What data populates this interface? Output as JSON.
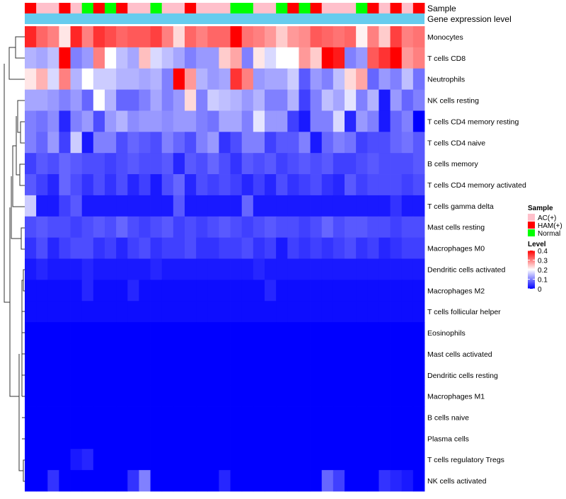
{
  "chart_data": {
    "type": "heatmap",
    "annotation_tracks": [
      {
        "label": "Sample",
        "values": [
          "HAM(+)",
          "AC(+)",
          "AC(+)",
          "HAM(+)",
          "AC(+)",
          "Normal",
          "HAM(+)",
          "Normal",
          "HAM(+)",
          "AC(+)",
          "AC(+)",
          "Normal",
          "AC(+)",
          "AC(+)",
          "HAM(+)",
          "AC(+)",
          "AC(+)",
          "AC(+)",
          "Normal",
          "Normal",
          "AC(+)",
          "AC(+)",
          "Normal",
          "HAM(+)",
          "Normal",
          "HAM(+)",
          "AC(+)",
          "AC(+)",
          "AC(+)",
          "Normal",
          "HAM(+)",
          "AC(+)",
          "HAM(+)",
          "AC(+)",
          "HAM(+)"
        ]
      },
      {
        "label": "Gene expression level",
        "values": [
          "single group"
        ]
      }
    ],
    "rows": [
      "Monocytes",
      "T cells CD8",
      "Neutrophils",
      "NK cells resting",
      "T cells CD4 memory resting",
      "T cells CD4 naive",
      "B cells memory",
      "T cells CD4 memory activated",
      "T cells gamma delta",
      "Mast cells resting",
      "Macrophages M0",
      "Dendritic cells activated",
      "Macrophages M2",
      "T cells follicular helper",
      "Eosinophils",
      "Mast cells activated",
      "Dendritic cells resting",
      "Macrophages M1",
      "B cells naive",
      "Plasma cells",
      "T cells regulatory  Tregs",
      "NK cells activated"
    ],
    "n_columns": 35,
    "values": [
      [
        0.37,
        0.32,
        0.3,
        0.22,
        0.37,
        0.3,
        0.36,
        0.34,
        0.32,
        0.33,
        0.33,
        0.35,
        0.3,
        0.23,
        0.32,
        0.3,
        0.32,
        0.32,
        0.4,
        0.31,
        0.3,
        0.28,
        0.24,
        0.28,
        0.29,
        0.33,
        0.32,
        0.31,
        0.32,
        0.21,
        0.3,
        0.24,
        0.35,
        0.3,
        0.31
      ],
      [
        0.14,
        0.13,
        0.15,
        0.4,
        0.1,
        0.12,
        0.3,
        0.2,
        0.15,
        0.13,
        0.25,
        0.17,
        0.15,
        0.13,
        0.1,
        0.12,
        0.12,
        0.24,
        0.27,
        0.1,
        0.22,
        0.17,
        0.2,
        0.2,
        0.28,
        0.24,
        0.4,
        0.38,
        0.1,
        0.12,
        0.33,
        0.36,
        0.4,
        0.28,
        0.3
      ],
      [
        0.22,
        0.26,
        0.17,
        0.3,
        0.14,
        0.2,
        0.16,
        0.16,
        0.14,
        0.14,
        0.13,
        0.14,
        0.1,
        0.4,
        0.28,
        0.14,
        0.12,
        0.13,
        0.36,
        0.3,
        0.12,
        0.13,
        0.13,
        0.16,
        0.07,
        0.12,
        0.1,
        0.15,
        0.23,
        0.27,
        0.08,
        0.12,
        0.1,
        0.15,
        0.09
      ],
      [
        0.13,
        0.13,
        0.12,
        0.1,
        0.12,
        0.08,
        0.2,
        0.14,
        0.08,
        0.08,
        0.1,
        0.13,
        0.1,
        0.12,
        0.23,
        0.1,
        0.16,
        0.15,
        0.14,
        0.12,
        0.14,
        0.1,
        0.1,
        0.14,
        0.05,
        0.1,
        0.15,
        0.13,
        0.18,
        0.1,
        0.14,
        0.02,
        0.12,
        0.08,
        0.1
      ],
      [
        0.1,
        0.09,
        0.11,
        0.03,
        0.1,
        0.12,
        0.06,
        0.12,
        0.14,
        0.11,
        0.12,
        0.12,
        0.11,
        0.12,
        0.12,
        0.1,
        0.09,
        0.13,
        0.13,
        0.1,
        0.18,
        0.12,
        0.12,
        0.05,
        0.02,
        0.1,
        0.1,
        0.17,
        0.03,
        0.12,
        0.1,
        0.02,
        0.08,
        0.1,
        0.0
      ],
      [
        0.1,
        0.08,
        0.12,
        0.05,
        0.16,
        0.02,
        0.1,
        0.1,
        0.06,
        0.08,
        0.07,
        0.06,
        0.1,
        0.08,
        0.06,
        0.1,
        0.12,
        0.04,
        0.06,
        0.1,
        0.1,
        0.05,
        0.07,
        0.07,
        0.1,
        0.02,
        0.08,
        0.1,
        0.09,
        0.05,
        0.06,
        0.06,
        0.08,
        0.09,
        0.07
      ],
      [
        0.05,
        0.07,
        0.06,
        0.08,
        0.07,
        0.06,
        0.06,
        0.05,
        0.06,
        0.07,
        0.06,
        0.06,
        0.07,
        0.03,
        0.07,
        0.06,
        0.08,
        0.06,
        0.04,
        0.07,
        0.06,
        0.07,
        0.05,
        0.06,
        0.07,
        0.06,
        0.07,
        0.05,
        0.05,
        0.06,
        0.07,
        0.06,
        0.06,
        0.06,
        0.07
      ],
      [
        0.07,
        0.05,
        0.03,
        0.08,
        0.06,
        0.04,
        0.06,
        0.04,
        0.06,
        0.03,
        0.05,
        0.02,
        0.06,
        0.08,
        0.03,
        0.06,
        0.05,
        0.06,
        0.05,
        0.03,
        0.05,
        0.03,
        0.06,
        0.04,
        0.05,
        0.06,
        0.04,
        0.03,
        0.07,
        0.05,
        0.06,
        0.06,
        0.06,
        0.05,
        0.06
      ],
      [
        0.16,
        0.02,
        0.02,
        0.05,
        0.07,
        0.02,
        0.02,
        0.02,
        0.02,
        0.02,
        0.02,
        0.02,
        0.02,
        0.07,
        0.02,
        0.02,
        0.02,
        0.02,
        0.02,
        0.08,
        0.02,
        0.02,
        0.02,
        0.02,
        0.02,
        0.02,
        0.02,
        0.02,
        0.02,
        0.02,
        0.02,
        0.02,
        0.04,
        0.02,
        0.02
      ],
      [
        0.06,
        0.07,
        0.06,
        0.06,
        0.05,
        0.06,
        0.07,
        0.06,
        0.08,
        0.06,
        0.05,
        0.06,
        0.07,
        0.05,
        0.06,
        0.05,
        0.06,
        0.07,
        0.06,
        0.05,
        0.06,
        0.07,
        0.06,
        0.06,
        0.05,
        0.06,
        0.08,
        0.06,
        0.07,
        0.07,
        0.06,
        0.06,
        0.05,
        0.06,
        0.06
      ],
      [
        0.04,
        0.06,
        0.03,
        0.05,
        0.06,
        0.06,
        0.04,
        0.05,
        0.03,
        0.05,
        0.06,
        0.04,
        0.05,
        0.05,
        0.06,
        0.04,
        0.04,
        0.05,
        0.05,
        0.06,
        0.04,
        0.05,
        0.02,
        0.05,
        0.04,
        0.05,
        0.04,
        0.05,
        0.06,
        0.04,
        0.05,
        0.03,
        0.04,
        0.05,
        0.05
      ],
      [
        0.02,
        0.03,
        0.02,
        0.02,
        0.02,
        0.03,
        0.02,
        0.02,
        0.02,
        0.02,
        0.02,
        0.03,
        0.02,
        0.02,
        0.02,
        0.02,
        0.02,
        0.02,
        0.02,
        0.02,
        0.03,
        0.02,
        0.02,
        0.02,
        0.02,
        0.02,
        0.02,
        0.02,
        0.02,
        0.02,
        0.02,
        0.02,
        0.02,
        0.02,
        0.02
      ],
      [
        0.01,
        0.01,
        0.01,
        0.01,
        0.01,
        0.03,
        0.01,
        0.01,
        0.01,
        0.03,
        0.01,
        0.01,
        0.01,
        0.01,
        0.01,
        0.01,
        0.01,
        0.01,
        0.01,
        0.01,
        0.01,
        0.03,
        0.01,
        0.01,
        0.01,
        0.01,
        0.01,
        0.01,
        0.01,
        0.01,
        0.01,
        0.01,
        0.01,
        0.01,
        0.01
      ],
      [
        0.01,
        0.01,
        0.01,
        0.01,
        0.01,
        0.01,
        0.01,
        0.01,
        0.01,
        0.01,
        0.01,
        0.01,
        0.01,
        0.01,
        0.01,
        0.01,
        0.01,
        0.01,
        0.01,
        0.01,
        0.01,
        0.01,
        0.01,
        0.01,
        0.01,
        0.01,
        0.01,
        0.01,
        0.01,
        0.01,
        0.01,
        0.01,
        0.01,
        0.01,
        0.01
      ],
      [
        0.0,
        0.0,
        0.0,
        0.0,
        0.0,
        0.0,
        0.0,
        0.0,
        0.0,
        0.0,
        0.0,
        0.0,
        0.0,
        0.0,
        0.0,
        0.0,
        0.0,
        0.0,
        0.0,
        0.0,
        0.0,
        0.0,
        0.0,
        0.0,
        0.0,
        0.0,
        0.0,
        0.0,
        0.0,
        0.0,
        0.0,
        0.0,
        0.0,
        0.0,
        0.0
      ],
      [
        0.0,
        0.0,
        0.0,
        0.0,
        0.0,
        0.0,
        0.0,
        0.0,
        0.0,
        0.0,
        0.0,
        0.0,
        0.0,
        0.0,
        0.0,
        0.0,
        0.0,
        0.0,
        0.0,
        0.0,
        0.0,
        0.0,
        0.0,
        0.0,
        0.0,
        0.0,
        0.0,
        0.0,
        0.0,
        0.0,
        0.0,
        0.0,
        0.0,
        0.0,
        0.0
      ],
      [
        0.0,
        0.0,
        0.0,
        0.0,
        0.0,
        0.0,
        0.0,
        0.0,
        0.0,
        0.0,
        0.0,
        0.0,
        0.0,
        0.0,
        0.0,
        0.0,
        0.0,
        0.0,
        0.0,
        0.0,
        0.0,
        0.0,
        0.0,
        0.0,
        0.0,
        0.0,
        0.0,
        0.0,
        0.0,
        0.0,
        0.0,
        0.0,
        0.0,
        0.0,
        0.0
      ],
      [
        0.0,
        0.0,
        0.0,
        0.0,
        0.0,
        0.0,
        0.0,
        0.0,
        0.0,
        0.0,
        0.0,
        0.0,
        0.0,
        0.0,
        0.0,
        0.0,
        0.0,
        0.0,
        0.0,
        0.0,
        0.0,
        0.0,
        0.0,
        0.0,
        0.0,
        0.0,
        0.0,
        0.0,
        0.0,
        0.0,
        0.0,
        0.0,
        0.0,
        0.0,
        0.0
      ],
      [
        0.0,
        0.0,
        0.0,
        0.0,
        0.0,
        0.0,
        0.0,
        0.0,
        0.0,
        0.0,
        0.0,
        0.0,
        0.0,
        0.0,
        0.0,
        0.0,
        0.0,
        0.0,
        0.0,
        0.0,
        0.0,
        0.0,
        0.0,
        0.0,
        0.0,
        0.0,
        0.0,
        0.0,
        0.0,
        0.0,
        0.0,
        0.0,
        0.0,
        0.0,
        0.0
      ],
      [
        0.0,
        0.0,
        0.0,
        0.0,
        0.0,
        0.0,
        0.0,
        0.0,
        0.0,
        0.0,
        0.0,
        0.0,
        0.0,
        0.0,
        0.0,
        0.0,
        0.0,
        0.0,
        0.0,
        0.0,
        0.0,
        0.0,
        0.0,
        0.0,
        0.0,
        0.0,
        0.0,
        0.0,
        0.0,
        0.0,
        0.0,
        0.0,
        0.0,
        0.0,
        0.0
      ],
      [
        0.0,
        0.0,
        0.0,
        0.0,
        0.02,
        0.03,
        0.0,
        0.0,
        0.0,
        0.0,
        0.0,
        0.0,
        0.0,
        0.0,
        0.0,
        0.0,
        0.0,
        0.0,
        0.0,
        0.0,
        0.0,
        0.0,
        0.0,
        0.0,
        0.0,
        0.0,
        0.0,
        0.0,
        0.0,
        0.0,
        0.0,
        0.0,
        0.0,
        0.0,
        0.0
      ],
      [
        0.0,
        0.0,
        0.04,
        0.0,
        0.0,
        0.0,
        0.0,
        0.0,
        0.0,
        0.04,
        0.1,
        0.0,
        0.0,
        0.0,
        0.0,
        0.0,
        0.0,
        0.03,
        0.0,
        0.0,
        0.0,
        0.0,
        0.0,
        0.0,
        0.0,
        0.0,
        0.08,
        0.05,
        0.0,
        0.0,
        0.0,
        0.04,
        0.03,
        0.02,
        0.0
      ]
    ],
    "color_scale": {
      "min": 0,
      "mid": 0.2,
      "max": 0.4,
      "low": "#0000ff",
      "mid_color": "#ffffff",
      "high": "#ff0000"
    },
    "legend": {
      "sample_title": "Sample",
      "sample_entries": [
        {
          "label": "AC(+)",
          "color": "#ffc0cb"
        },
        {
          "label": "HAM(+)",
          "color": "#ff0000"
        },
        {
          "label": "Normal",
          "color": "#00ff00"
        }
      ],
      "level_title": "Level",
      "level_ticks": [
        "0.4",
        "0.3",
        "0.2",
        "0.1",
        "0"
      ],
      "position": "right"
    },
    "gene_expression_color": "#66ccee",
    "row_dendrogram": "shown on left",
    "grid": false
  }
}
